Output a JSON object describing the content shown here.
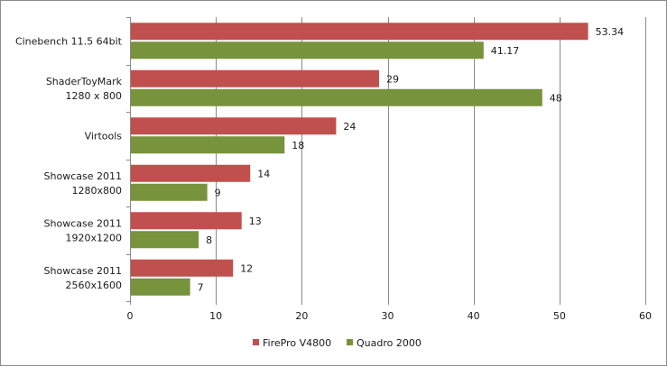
{
  "chart_data": {
    "type": "bar",
    "orientation": "horizontal",
    "categories": [
      [
        "Cinebench 11.5 64bit"
      ],
      [
        "ShaderToyMark",
        "1280 x 800"
      ],
      [
        "Virtools"
      ],
      [
        "Showcase 2011",
        "1280x800"
      ],
      [
        "Showcase 2011",
        "1920x1200"
      ],
      [
        "Showcase 2011",
        "2560x1600"
      ]
    ],
    "series": [
      {
        "name": "FirePro V4800",
        "color": "#c0504d",
        "values": [
          53.34,
          29,
          24,
          14,
          13,
          12
        ]
      },
      {
        "name": "Quadro 2000",
        "color": "#77933c",
        "values": [
          41.17,
          48,
          18,
          9,
          8,
          7
        ]
      }
    ],
    "value_labels": [
      [
        "53.34",
        "29",
        "24",
        "14",
        "13",
        "12"
      ],
      [
        "41.17",
        "48",
        "18",
        "9",
        "8",
        "7"
      ]
    ],
    "xlim": [
      0,
      60
    ],
    "xticks": [
      0,
      10,
      20,
      30,
      40,
      50,
      60
    ],
    "grid": "vertical",
    "legend": "bottom",
    "title": "",
    "xlabel": "",
    "ylabel": ""
  }
}
